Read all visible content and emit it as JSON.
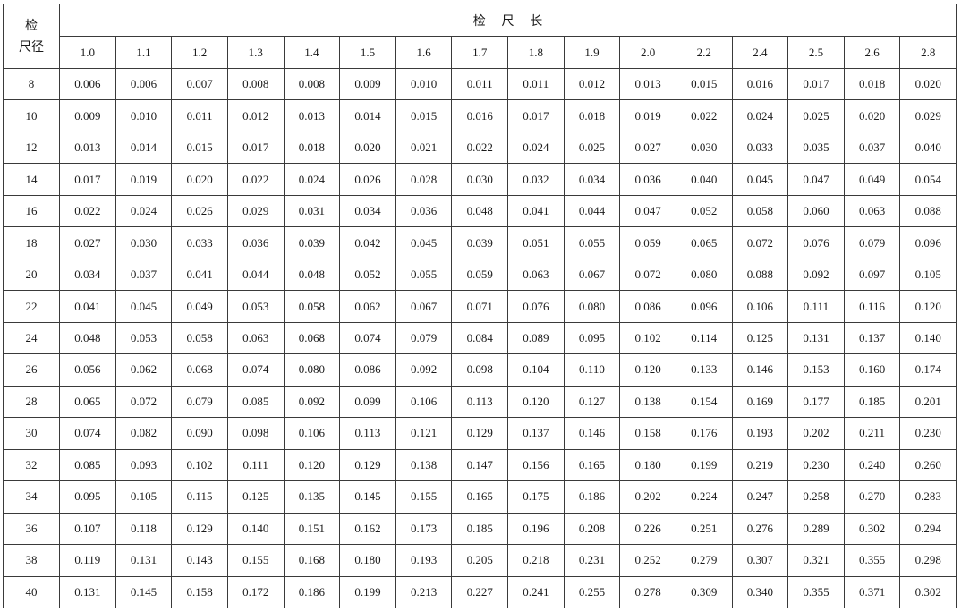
{
  "table": {
    "corner_label_line1": "检",
    "corner_label_line2": "尺径",
    "group_header": "检    尺    长",
    "lengths": [
      "1.0",
      "1.1",
      "1.2",
      "1.3",
      "1.4",
      "1.5",
      "1.6",
      "1.7",
      "1.8",
      "1.9",
      "2.0",
      "2.2",
      "2.4",
      "2.5",
      "2.6",
      "2.8"
    ],
    "rows": [
      {
        "diameter": "8",
        "values": [
          "0.006",
          "0.006",
          "0.007",
          "0.008",
          "0.008",
          "0.009",
          "0.010",
          "0.011",
          "0.011",
          "0.012",
          "0.013",
          "0.015",
          "0.016",
          "0.017",
          "0.018",
          "0.020"
        ]
      },
      {
        "diameter": "10",
        "values": [
          "0.009",
          "0.010",
          "0.011",
          "0.012",
          "0.013",
          "0.014",
          "0.015",
          "0.016",
          "0.017",
          "0.018",
          "0.019",
          "0.022",
          "0.024",
          "0.025",
          "0.020",
          "0.029"
        ]
      },
      {
        "diameter": "12",
        "values": [
          "0.013",
          "0.014",
          "0.015",
          "0.017",
          "0.018",
          "0.020",
          "0.021",
          "0.022",
          "0.024",
          "0.025",
          "0.027",
          "0.030",
          "0.033",
          "0.035",
          "0.037",
          "0.040"
        ]
      },
      {
        "diameter": "14",
        "values": [
          "0.017",
          "0.019",
          "0.020",
          "0.022",
          "0.024",
          "0.026",
          "0.028",
          "0.030",
          "0.032",
          "0.034",
          "0.036",
          "0.040",
          "0.045",
          "0.047",
          "0.049",
          "0.054"
        ]
      },
      {
        "diameter": "16",
        "values": [
          "0.022",
          "0.024",
          "0.026",
          "0.029",
          "0.031",
          "0.034",
          "0.036",
          "0.048",
          "0.041",
          "0.044",
          "0.047",
          "0.052",
          "0.058",
          "0.060",
          "0.063",
          "0.088"
        ]
      },
      {
        "diameter": "18",
        "values": [
          "0.027",
          "0.030",
          "0.033",
          "0.036",
          "0.039",
          "0.042",
          "0.045",
          "0.039",
          "0.051",
          "0.055",
          "0.059",
          "0.065",
          "0.072",
          "0.076",
          "0.079",
          "0.096"
        ]
      },
      {
        "diameter": "20",
        "values": [
          "0.034",
          "0.037",
          "0.041",
          "0.044",
          "0.048",
          "0.052",
          "0.055",
          "0.059",
          "0.063",
          "0.067",
          "0.072",
          "0.080",
          "0.088",
          "0.092",
          "0.097",
          "0.105"
        ]
      },
      {
        "diameter": "22",
        "values": [
          "0.041",
          "0.045",
          "0.049",
          "0.053",
          "0.058",
          "0.062",
          "0.067",
          "0.071",
          "0.076",
          "0.080",
          "0.086",
          "0.096",
          "0.106",
          "0.111",
          "0.116",
          "0.120"
        ]
      },
      {
        "diameter": "24",
        "values": [
          "0.048",
          "0.053",
          "0.058",
          "0.063",
          "0.068",
          "0.074",
          "0.079",
          "0.084",
          "0.089",
          "0.095",
          "0.102",
          "0.114",
          "0.125",
          "0.131",
          "0.137",
          "0.140"
        ]
      },
      {
        "diameter": "26",
        "values": [
          "0.056",
          "0.062",
          "0.068",
          "0.074",
          "0.080",
          "0.086",
          "0.092",
          "0.098",
          "0.104",
          "0.110",
          "0.120",
          "0.133",
          "0.146",
          "0.153",
          "0.160",
          "0.174"
        ]
      },
      {
        "diameter": "28",
        "values": [
          "0.065",
          "0.072",
          "0.079",
          "0.085",
          "0.092",
          "0.099",
          "0.106",
          "0.113",
          "0.120",
          "0.127",
          "0.138",
          "0.154",
          "0.169",
          "0.177",
          "0.185",
          "0.201"
        ]
      },
      {
        "diameter": "30",
        "values": [
          "0.074",
          "0.082",
          "0.090",
          "0.098",
          "0.106",
          "0.113",
          "0.121",
          "0.129",
          "0.137",
          "0.146",
          "0.158",
          "0.176",
          "0.193",
          "0.202",
          "0.211",
          "0.230"
        ]
      },
      {
        "diameter": "32",
        "values": [
          "0.085",
          "0.093",
          "0.102",
          "0.111",
          "0.120",
          "0.129",
          "0.138",
          "0.147",
          "0.156",
          "0.165",
          "0.180",
          "0.199",
          "0.219",
          "0.230",
          "0.240",
          "0.260"
        ]
      },
      {
        "diameter": "34",
        "values": [
          "0.095",
          "0.105",
          "0.115",
          "0.125",
          "0.135",
          "0.145",
          "0.155",
          "0.165",
          "0.175",
          "0.186",
          "0.202",
          "0.224",
          "0.247",
          "0.258",
          "0.270",
          "0.283"
        ]
      },
      {
        "diameter": "36",
        "values": [
          "0.107",
          "0.118",
          "0.129",
          "0.140",
          "0.151",
          "0.162",
          "0.173",
          "0.185",
          "0.196",
          "0.208",
          "0.226",
          "0.251",
          "0.276",
          "0.289",
          "0.302",
          "0.294"
        ]
      },
      {
        "diameter": "38",
        "values": [
          "0.119",
          "0.131",
          "0.143",
          "0.155",
          "0.168",
          "0.180",
          "0.193",
          "0.205",
          "0.218",
          "0.231",
          "0.252",
          "0.279",
          "0.307",
          "0.321",
          "0.355",
          "0.298"
        ]
      },
      {
        "diameter": "40",
        "values": [
          "0.131",
          "0.145",
          "0.158",
          "0.172",
          "0.186",
          "0.199",
          "0.213",
          "0.227",
          "0.241",
          "0.255",
          "0.278",
          "0.309",
          "0.340",
          "0.355",
          "0.371",
          "0.302"
        ]
      }
    ]
  }
}
